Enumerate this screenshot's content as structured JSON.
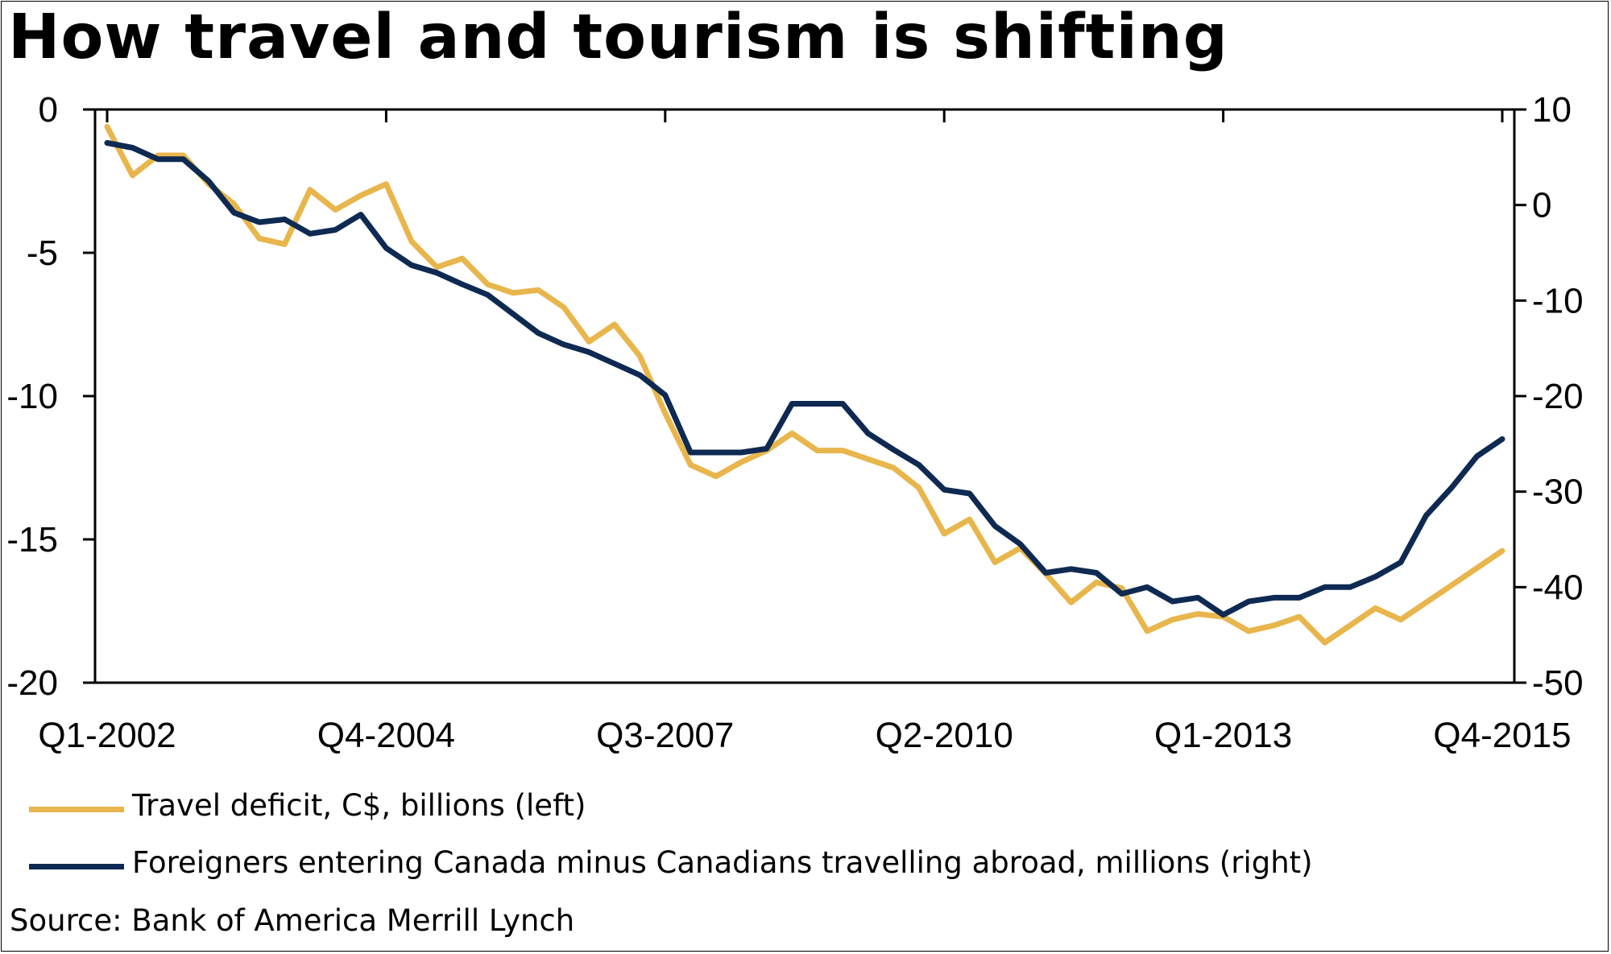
{
  "title": "How travel and tourism is shifting",
  "source": "Source: Bank of America Merrill Lynch",
  "colors": {
    "deficit": "#E8B64C",
    "foreigners": "#0E2A52",
    "axis": "#000000"
  },
  "legend": [
    {
      "label": "Travel deficit, C$, billions (left)",
      "color": "#E8B64C"
    },
    {
      "label": "Foreigners entering Canada minus Canadians travelling abroad, millions (right)",
      "color": "#0E2A52"
    }
  ],
  "chart_data": {
    "type": "line",
    "title": "How travel and tourism is shifting",
    "x_tick_labels": [
      "Q1-2002",
      "Q4-2004",
      "Q3-2007",
      "Q2-2010",
      "Q1-2013",
      "Q4-2015"
    ],
    "left_axis": {
      "range": [
        -20,
        0
      ],
      "ticks": [
        0,
        -5,
        -10,
        -15,
        -20
      ],
      "tick_labels": [
        "0",
        "-5",
        "-10",
        "-15",
        "-20"
      ]
    },
    "right_axis": {
      "range": [
        -50,
        10
      ],
      "ticks": [
        10,
        0,
        -10,
        -20,
        -30,
        -40,
        -50
      ],
      "tick_labels": [
        "10",
        "0",
        "-10",
        "-20",
        "-30",
        "-40",
        "-50"
      ]
    },
    "grid": false,
    "legend_position": "bottom",
    "series": [
      {
        "name": "Travel deficit, C$, billions (left)",
        "axis": "left",
        "x": [
          "Q1-2002",
          "Q2-2002",
          "Q3-2002",
          "Q4-2002",
          "Q1-2003",
          "Q2-2003",
          "Q3-2003",
          "Q4-2003",
          "Q1-2004",
          "Q2-2004",
          "Q3-2004",
          "Q4-2004",
          "Q1-2005",
          "Q2-2005",
          "Q3-2005",
          "Q4-2005",
          "Q1-2006",
          "Q2-2006",
          "Q3-2006",
          "Q4-2006",
          "Q1-2007",
          "Q2-2007",
          "Q3-2007",
          "Q4-2007",
          "Q1-2008",
          "Q2-2008",
          "Q3-2008",
          "Q4-2008",
          "Q1-2009",
          "Q2-2009",
          "Q3-2009",
          "Q4-2009",
          "Q1-2010",
          "Q2-2010",
          "Q3-2010",
          "Q4-2010",
          "Q1-2011",
          "Q2-2011",
          "Q3-2011",
          "Q4-2011",
          "Q1-2012",
          "Q2-2012",
          "Q3-2012",
          "Q4-2012",
          "Q1-2013",
          "Q2-2013",
          "Q3-2013",
          "Q4-2013",
          "Q1-2014",
          "Q2-2014",
          "Q3-2014",
          "Q4-2014",
          "Q1-2015",
          "Q2-2015",
          "Q3-2015",
          "Q4-2015"
        ],
        "values": [
          -0.6,
          -2.3,
          -1.6,
          -1.6,
          -2.6,
          -3.3,
          -4.5,
          -4.7,
          -2.8,
          -3.5,
          -3.0,
          -2.6,
          -4.6,
          -5.5,
          -5.2,
          -6.1,
          -6.4,
          -6.3,
          -6.9,
          -8.1,
          -7.5,
          -8.6,
          -10.6,
          -12.4,
          -12.8,
          -12.3,
          -11.9,
          -11.3,
          -11.9,
          -11.9,
          -12.2,
          -12.5,
          -13.2,
          -14.8,
          -14.3,
          -15.8,
          -15.3,
          -16.2,
          -17.2,
          -16.5,
          -16.7,
          -18.2,
          -17.8,
          -17.6,
          -17.7,
          -18.2,
          -18.0,
          -17.7,
          -18.6,
          -18.0,
          -17.4,
          -17.8,
          -17.2,
          -16.6,
          -16.0,
          -15.4
        ]
      },
      {
        "name": "Foreigners entering Canada minus Canadians travelling abroad, millions (right)",
        "axis": "right",
        "x": [
          "Q1-2002",
          "Q2-2002",
          "Q3-2002",
          "Q4-2002",
          "Q1-2003",
          "Q2-2003",
          "Q3-2003",
          "Q4-2003",
          "Q1-2004",
          "Q2-2004",
          "Q3-2004",
          "Q4-2004",
          "Q1-2005",
          "Q2-2005",
          "Q3-2005",
          "Q4-2005",
          "Q1-2006",
          "Q2-2006",
          "Q3-2006",
          "Q4-2006",
          "Q1-2007",
          "Q2-2007",
          "Q3-2007",
          "Q4-2007",
          "Q1-2008",
          "Q2-2008",
          "Q3-2008",
          "Q4-2008",
          "Q1-2009",
          "Q2-2009",
          "Q3-2009",
          "Q4-2009",
          "Q1-2010",
          "Q2-2010",
          "Q3-2010",
          "Q4-2010",
          "Q1-2011",
          "Q2-2011",
          "Q3-2011",
          "Q4-2011",
          "Q1-2012",
          "Q2-2012",
          "Q3-2012",
          "Q4-2012",
          "Q1-2013",
          "Q2-2013",
          "Q3-2013",
          "Q4-2013",
          "Q1-2014",
          "Q2-2014",
          "Q3-2014",
          "Q4-2014",
          "Q1-2015",
          "Q2-2015",
          "Q3-2015",
          "Q4-2015"
        ],
        "values": [
          6.5,
          6.0,
          4.8,
          4.8,
          2.5,
          -0.8,
          -1.8,
          -1.5,
          -3.0,
          -2.6,
          -1.0,
          -4.5,
          -6.3,
          -7.1,
          -8.3,
          -9.4,
          -11.4,
          -13.4,
          -14.6,
          -15.4,
          -16.6,
          -17.8,
          -19.9,
          -25.9,
          -25.9,
          -25.9,
          -25.5,
          -20.8,
          -20.8,
          -20.8,
          -23.9,
          -25.6,
          -27.2,
          -29.8,
          -30.2,
          -33.6,
          -35.5,
          -38.5,
          -38.1,
          -38.5,
          -40.7,
          -40.0,
          -41.5,
          -41.1,
          -42.9,
          -41.5,
          -41.1,
          -41.1,
          -40.0,
          -40.0,
          -38.9,
          -37.4,
          -32.5,
          -29.6,
          -26.3,
          -24.5
        ]
      }
    ]
  }
}
